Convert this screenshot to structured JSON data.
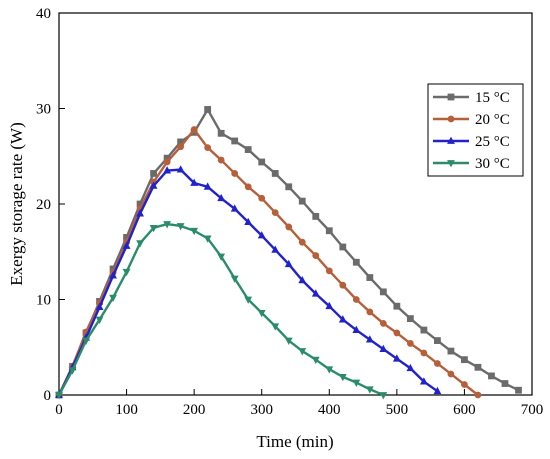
{
  "chart_data": {
    "type": "line",
    "title": "",
    "xlabel": "Time (min)",
    "ylabel": "Exergy storage rate (W)",
    "xlim": [
      0,
      700
    ],
    "ylim": [
      0,
      40
    ],
    "x_ticks": [
      "0",
      "100",
      "200",
      "300",
      "400",
      "500",
      "600",
      "700"
    ],
    "y_ticks": [
      "0",
      "10",
      "20",
      "30",
      "40"
    ],
    "grid": false,
    "legend_position": "top-right",
    "series": [
      {
        "name": "15 °C",
        "color": "#6b6b6b",
        "marker": "square",
        "points": [
          [
            0,
            0
          ],
          [
            20,
            3.0
          ],
          [
            40,
            6.5
          ],
          [
            60,
            9.8
          ],
          [
            80,
            13.2
          ],
          [
            100,
            16.5
          ],
          [
            120,
            20.0
          ],
          [
            140,
            23.2
          ],
          [
            160,
            24.8
          ],
          [
            180,
            26.5
          ],
          [
            200,
            27.5
          ],
          [
            220,
            29.9
          ],
          [
            240,
            27.4
          ],
          [
            260,
            26.6
          ],
          [
            280,
            25.7
          ],
          [
            300,
            24.4
          ],
          [
            320,
            23.2
          ],
          [
            340,
            21.8
          ],
          [
            360,
            20.3
          ],
          [
            380,
            18.7
          ],
          [
            400,
            17.2
          ],
          [
            420,
            15.5
          ],
          [
            440,
            13.9
          ],
          [
            460,
            12.3
          ],
          [
            480,
            10.8
          ],
          [
            500,
            9.3
          ],
          [
            520,
            8.0
          ],
          [
            540,
            6.8
          ],
          [
            560,
            5.7
          ],
          [
            580,
            4.6
          ],
          [
            600,
            3.7
          ],
          [
            620,
            2.9
          ],
          [
            640,
            2.0
          ],
          [
            660,
            1.2
          ],
          [
            680,
            0.5
          ]
        ]
      },
      {
        "name": "20 °C",
        "color": "#b5603b",
        "marker": "circle",
        "points": [
          [
            0,
            0
          ],
          [
            20,
            3.0
          ],
          [
            40,
            6.6
          ],
          [
            60,
            9.6
          ],
          [
            80,
            12.8
          ],
          [
            100,
            16.0
          ],
          [
            120,
            19.5
          ],
          [
            140,
            22.3
          ],
          [
            160,
            24.4
          ],
          [
            180,
            26.0
          ],
          [
            200,
            27.8
          ],
          [
            220,
            25.9
          ],
          [
            240,
            24.6
          ],
          [
            260,
            23.2
          ],
          [
            280,
            21.8
          ],
          [
            300,
            20.6
          ],
          [
            320,
            19.1
          ],
          [
            340,
            17.6
          ],
          [
            360,
            16.0
          ],
          [
            380,
            14.6
          ],
          [
            400,
            13.0
          ],
          [
            420,
            11.5
          ],
          [
            440,
            10.0
          ],
          [
            460,
            8.7
          ],
          [
            480,
            7.5
          ],
          [
            500,
            6.5
          ],
          [
            520,
            5.4
          ],
          [
            540,
            4.4
          ],
          [
            560,
            3.3
          ],
          [
            580,
            2.2
          ],
          [
            600,
            1.1
          ],
          [
            620,
            0.0
          ]
        ]
      },
      {
        "name": "25 °C",
        "color": "#2222cc",
        "marker": "triangle-up",
        "points": [
          [
            0,
            0
          ],
          [
            20,
            2.9
          ],
          [
            40,
            6.0
          ],
          [
            60,
            9.2
          ],
          [
            80,
            12.5
          ],
          [
            100,
            15.6
          ],
          [
            120,
            19.0
          ],
          [
            140,
            21.9
          ],
          [
            160,
            23.5
          ],
          [
            180,
            23.6
          ],
          [
            200,
            22.2
          ],
          [
            220,
            21.8
          ],
          [
            240,
            20.6
          ],
          [
            260,
            19.5
          ],
          [
            280,
            18.1
          ],
          [
            300,
            16.7
          ],
          [
            320,
            15.2
          ],
          [
            340,
            13.7
          ],
          [
            360,
            12.0
          ],
          [
            380,
            10.6
          ],
          [
            400,
            9.3
          ],
          [
            420,
            7.9
          ],
          [
            440,
            6.8
          ],
          [
            460,
            5.8
          ],
          [
            480,
            4.8
          ],
          [
            500,
            3.8
          ],
          [
            520,
            2.8
          ],
          [
            540,
            1.4
          ],
          [
            560,
            0.4
          ]
        ]
      },
      {
        "name": "30 °C",
        "color": "#2b8c6b",
        "marker": "triangle-down",
        "points": [
          [
            0,
            0
          ],
          [
            20,
            2.6
          ],
          [
            40,
            5.7
          ],
          [
            60,
            7.9
          ],
          [
            80,
            10.2
          ],
          [
            100,
            12.9
          ],
          [
            120,
            15.9
          ],
          [
            140,
            17.5
          ],
          [
            160,
            17.9
          ],
          [
            180,
            17.7
          ],
          [
            200,
            17.2
          ],
          [
            220,
            16.4
          ],
          [
            240,
            14.5
          ],
          [
            260,
            12.2
          ],
          [
            280,
            10.0
          ],
          [
            300,
            8.6
          ],
          [
            320,
            7.2
          ],
          [
            340,
            5.7
          ],
          [
            360,
            4.6
          ],
          [
            380,
            3.7
          ],
          [
            400,
            2.7
          ],
          [
            420,
            1.9
          ],
          [
            440,
            1.3
          ],
          [
            460,
            0.6
          ],
          [
            480,
            0.0
          ]
        ]
      }
    ]
  }
}
